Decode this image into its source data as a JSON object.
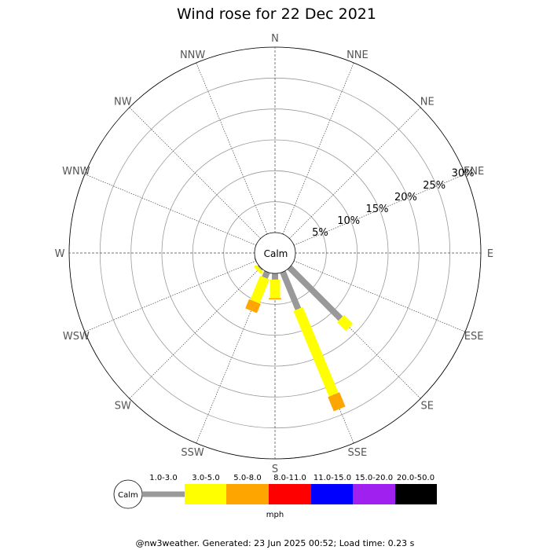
{
  "chart_data": {
    "type": "wind-rose",
    "title": "Wind rose for 22 Dec 2021",
    "directions": [
      "N",
      "NNE",
      "NE",
      "ENE",
      "E",
      "ESE",
      "SE",
      "SSE",
      "S",
      "SSW",
      "SW",
      "WSW",
      "W",
      "WNW",
      "NW",
      "NNW"
    ],
    "radial_ticks": [
      "5%",
      "10%",
      "15%",
      "20%",
      "25%",
      "30%"
    ],
    "radial_max": 30,
    "calm_label": "Calm",
    "speed_bins": [
      "1.0-3.0",
      "3.0-5.0",
      "5.0-8.0",
      "8.0-11.0",
      "11.0-15.0",
      "15.0-20.0",
      "20.0-50.0"
    ],
    "bin_colors": [
      "#999999",
      "#ffff00",
      "#ffa500",
      "#ff0000",
      "#0000ff",
      "#a020f0",
      "#000000"
    ],
    "units": "mph",
    "series": [
      {
        "direction": "SE",
        "segments": [
          11.7,
          2.0
        ]
      },
      {
        "direction": "SSE",
        "segments": [
          6.5,
          15.0,
          2.5
        ]
      },
      {
        "direction": "S",
        "segments": [
          1.0,
          3.0,
          0.2
        ]
      },
      {
        "direction": "SSW",
        "segments": [
          1.0,
          4.2,
          1.6
        ]
      },
      {
        "direction": "SW",
        "segments": [
          0.2,
          0.5
        ]
      },
      {
        "direction": "WSW",
        "segments": [
          0.1
        ]
      }
    ]
  },
  "footer": "@nw3weather. Generated: 23 Jun 2025 00:52; Load time: 0.23 s"
}
